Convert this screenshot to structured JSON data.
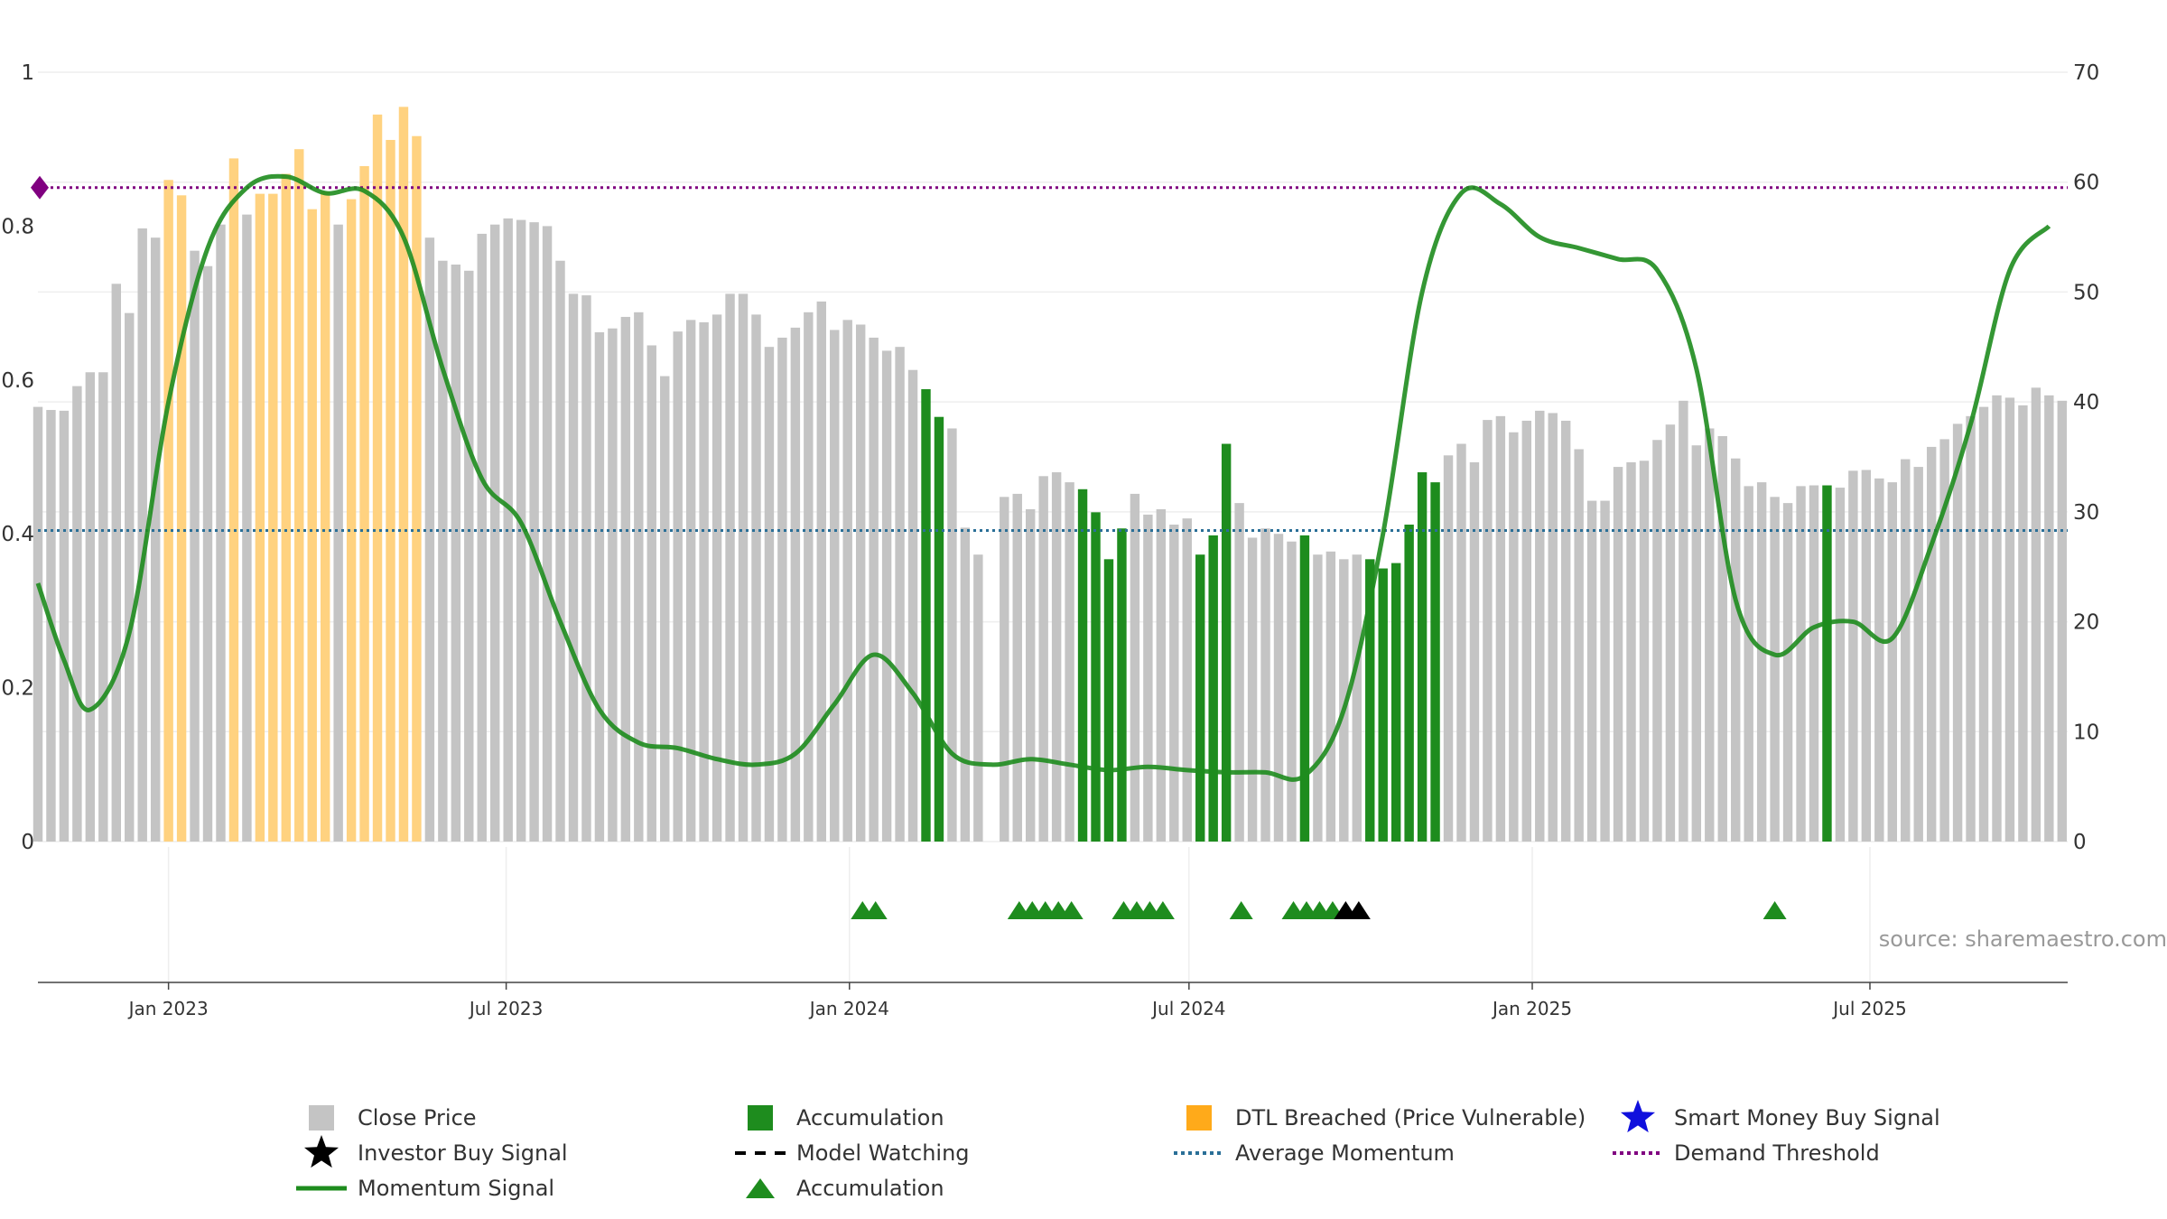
{
  "chart_data": {
    "type": "bar",
    "title": "",
    "left_axis": {
      "min": 0,
      "max": 1,
      "ticks": [
        {
          "value": 0,
          "label": "0"
        },
        {
          "value": 0.2,
          "label": "0.2"
        },
        {
          "value": 0.4,
          "label": "0.4"
        },
        {
          "value": 0.6,
          "label": "0.6"
        },
        {
          "value": 0.8,
          "label": "0.8"
        },
        {
          "value": 1,
          "label": "1"
        }
      ]
    },
    "right_axis": {
      "min": 0,
      "max": 70,
      "ticks": [
        {
          "value": 0,
          "label": "0"
        },
        {
          "value": 10,
          "label": "10"
        },
        {
          "value": 20,
          "label": "20"
        },
        {
          "value": 30,
          "label": "30"
        },
        {
          "value": 40,
          "label": "40"
        },
        {
          "value": 50,
          "label": "50"
        },
        {
          "value": 60,
          "label": "60"
        },
        {
          "value": 70,
          "label": "70"
        }
      ]
    },
    "x_axis": {
      "start": "2022-10-23",
      "end": "2025-10-15",
      "ticks": [
        {
          "date": "2023-01-01",
          "label": "Jan 2023"
        },
        {
          "date": "2023-07-01",
          "label": "Jul 2023"
        },
        {
          "date": "2024-01-01",
          "label": "Jan 2024"
        },
        {
          "date": "2024-07-01",
          "label": "Jul 2024"
        },
        {
          "date": "2025-01-01",
          "label": "Jan 2025"
        },
        {
          "date": "2025-07-01",
          "label": "Jul 2025"
        }
      ]
    },
    "bar_series_name": "Close Price",
    "bar_colors": {
      "gray": "#c4c4c4",
      "green": "#1e8c1e",
      "orange": "#ffd280"
    },
    "first_bar_date": "2022-10-23",
    "bar_interval_days": 7,
    "bars": [
      {
        "v": 0.565,
        "c": "gray"
      },
      {
        "v": 0.561,
        "c": "gray"
      },
      {
        "v": 0.56,
        "c": "gray"
      },
      {
        "v": 0.592,
        "c": "gray"
      },
      {
        "v": 0.61,
        "c": "gray"
      },
      {
        "v": 0.61,
        "c": "gray"
      },
      {
        "v": 0.725,
        "c": "gray"
      },
      {
        "v": 0.687,
        "c": "gray"
      },
      {
        "v": 0.797,
        "c": "gray"
      },
      {
        "v": 0.785,
        "c": "gray"
      },
      {
        "v": 0.86,
        "c": "orange"
      },
      {
        "v": 0.84,
        "c": "orange"
      },
      {
        "v": 0.768,
        "c": "gray"
      },
      {
        "v": 0.748,
        "c": "gray"
      },
      {
        "v": 0.802,
        "c": "gray"
      },
      {
        "v": 0.888,
        "c": "orange"
      },
      {
        "v": 0.815,
        "c": "gray"
      },
      {
        "v": 0.842,
        "c": "orange"
      },
      {
        "v": 0.842,
        "c": "orange"
      },
      {
        "v": 0.868,
        "c": "orange"
      },
      {
        "v": 0.9,
        "c": "orange"
      },
      {
        "v": 0.822,
        "c": "orange"
      },
      {
        "v": 0.845,
        "c": "orange"
      },
      {
        "v": 0.802,
        "c": "gray"
      },
      {
        "v": 0.835,
        "c": "orange"
      },
      {
        "v": 0.878,
        "c": "orange"
      },
      {
        "v": 0.945,
        "c": "orange"
      },
      {
        "v": 0.912,
        "c": "orange"
      },
      {
        "v": 0.955,
        "c": "orange"
      },
      {
        "v": 0.917,
        "c": "orange"
      },
      {
        "v": 0.785,
        "c": "gray"
      },
      {
        "v": 0.755,
        "c": "gray"
      },
      {
        "v": 0.75,
        "c": "gray"
      },
      {
        "v": 0.742,
        "c": "gray"
      },
      {
        "v": 0.79,
        "c": "gray"
      },
      {
        "v": 0.802,
        "c": "gray"
      },
      {
        "v": 0.81,
        "c": "gray"
      },
      {
        "v": 0.808,
        "c": "gray"
      },
      {
        "v": 0.805,
        "c": "gray"
      },
      {
        "v": 0.8,
        "c": "gray"
      },
      {
        "v": 0.755,
        "c": "gray"
      },
      {
        "v": 0.712,
        "c": "gray"
      },
      {
        "v": 0.71,
        "c": "gray"
      },
      {
        "v": 0.662,
        "c": "gray"
      },
      {
        "v": 0.667,
        "c": "gray"
      },
      {
        "v": 0.682,
        "c": "gray"
      },
      {
        "v": 0.688,
        "c": "gray"
      },
      {
        "v": 0.645,
        "c": "gray"
      },
      {
        "v": 0.605,
        "c": "gray"
      },
      {
        "v": 0.663,
        "c": "gray"
      },
      {
        "v": 0.678,
        "c": "gray"
      },
      {
        "v": 0.675,
        "c": "gray"
      },
      {
        "v": 0.685,
        "c": "gray"
      },
      {
        "v": 0.712,
        "c": "gray"
      },
      {
        "v": 0.712,
        "c": "gray"
      },
      {
        "v": 0.685,
        "c": "gray"
      },
      {
        "v": 0.643,
        "c": "gray"
      },
      {
        "v": 0.655,
        "c": "gray"
      },
      {
        "v": 0.668,
        "c": "gray"
      },
      {
        "v": 0.688,
        "c": "gray"
      },
      {
        "v": 0.702,
        "c": "gray"
      },
      {
        "v": 0.665,
        "c": "gray"
      },
      {
        "v": 0.678,
        "c": "gray"
      },
      {
        "v": 0.672,
        "c": "gray"
      },
      {
        "v": 0.655,
        "c": "gray"
      },
      {
        "v": 0.638,
        "c": "gray"
      },
      {
        "v": 0.643,
        "c": "gray"
      },
      {
        "v": 0.613,
        "c": "gray"
      },
      {
        "v": 0.588,
        "c": "green"
      },
      {
        "v": 0.552,
        "c": "green"
      },
      {
        "v": 0.537,
        "c": "gray"
      },
      {
        "v": 0.408,
        "c": "gray"
      },
      {
        "v": 0.373,
        "c": "gray"
      },
      {
        "v": 0.0,
        "c": "gray"
      },
      {
        "v": 0.448,
        "c": "gray"
      },
      {
        "v": 0.452,
        "c": "gray"
      },
      {
        "v": 0.432,
        "c": "gray"
      },
      {
        "v": 0.475,
        "c": "gray"
      },
      {
        "v": 0.48,
        "c": "gray"
      },
      {
        "v": 0.467,
        "c": "gray"
      },
      {
        "v": 0.458,
        "c": "green"
      },
      {
        "v": 0.428,
        "c": "green"
      },
      {
        "v": 0.367,
        "c": "green"
      },
      {
        "v": 0.407,
        "c": "green"
      },
      {
        "v": 0.452,
        "c": "gray"
      },
      {
        "v": 0.425,
        "c": "gray"
      },
      {
        "v": 0.432,
        "c": "gray"
      },
      {
        "v": 0.412,
        "c": "gray"
      },
      {
        "v": 0.42,
        "c": "gray"
      },
      {
        "v": 0.373,
        "c": "green"
      },
      {
        "v": 0.398,
        "c": "green"
      },
      {
        "v": 0.517,
        "c": "green"
      },
      {
        "v": 0.44,
        "c": "gray"
      },
      {
        "v": 0.395,
        "c": "gray"
      },
      {
        "v": 0.407,
        "c": "gray"
      },
      {
        "v": 0.4,
        "c": "gray"
      },
      {
        "v": 0.39,
        "c": "gray"
      },
      {
        "v": 0.398,
        "c": "green"
      },
      {
        "v": 0.373,
        "c": "gray"
      },
      {
        "v": 0.377,
        "c": "gray"
      },
      {
        "v": 0.367,
        "c": "gray"
      },
      {
        "v": 0.373,
        "c": "gray"
      },
      {
        "v": 0.367,
        "c": "green"
      },
      {
        "v": 0.355,
        "c": "green"
      },
      {
        "v": 0.362,
        "c": "green"
      },
      {
        "v": 0.412,
        "c": "green"
      },
      {
        "v": 0.48,
        "c": "green"
      },
      {
        "v": 0.467,
        "c": "green"
      },
      {
        "v": 0.502,
        "c": "gray"
      },
      {
        "v": 0.517,
        "c": "gray"
      },
      {
        "v": 0.493,
        "c": "gray"
      },
      {
        "v": 0.548,
        "c": "gray"
      },
      {
        "v": 0.553,
        "c": "gray"
      },
      {
        "v": 0.532,
        "c": "gray"
      },
      {
        "v": 0.547,
        "c": "gray"
      },
      {
        "v": 0.56,
        "c": "gray"
      },
      {
        "v": 0.557,
        "c": "gray"
      },
      {
        "v": 0.547,
        "c": "gray"
      },
      {
        "v": 0.51,
        "c": "gray"
      },
      {
        "v": 0.443,
        "c": "gray"
      },
      {
        "v": 0.443,
        "c": "gray"
      },
      {
        "v": 0.487,
        "c": "gray"
      },
      {
        "v": 0.493,
        "c": "gray"
      },
      {
        "v": 0.495,
        "c": "gray"
      },
      {
        "v": 0.522,
        "c": "gray"
      },
      {
        "v": 0.542,
        "c": "gray"
      },
      {
        "v": 0.573,
        "c": "gray"
      },
      {
        "v": 0.515,
        "c": "gray"
      },
      {
        "v": 0.537,
        "c": "gray"
      },
      {
        "v": 0.527,
        "c": "gray"
      },
      {
        "v": 0.498,
        "c": "gray"
      },
      {
        "v": 0.462,
        "c": "gray"
      },
      {
        "v": 0.467,
        "c": "gray"
      },
      {
        "v": 0.448,
        "c": "gray"
      },
      {
        "v": 0.44,
        "c": "gray"
      },
      {
        "v": 0.462,
        "c": "gray"
      },
      {
        "v": 0.463,
        "c": "gray"
      },
      {
        "v": 0.463,
        "c": "green"
      },
      {
        "v": 0.46,
        "c": "gray"
      },
      {
        "v": 0.482,
        "c": "gray"
      },
      {
        "v": 0.483,
        "c": "gray"
      },
      {
        "v": 0.472,
        "c": "gray"
      },
      {
        "v": 0.467,
        "c": "gray"
      },
      {
        "v": 0.497,
        "c": "gray"
      },
      {
        "v": 0.487,
        "c": "gray"
      },
      {
        "v": 0.513,
        "c": "gray"
      },
      {
        "v": 0.523,
        "c": "gray"
      },
      {
        "v": 0.543,
        "c": "gray"
      },
      {
        "v": 0.553,
        "c": "gray"
      },
      {
        "v": 0.565,
        "c": "gray"
      },
      {
        "v": 0.58,
        "c": "gray"
      },
      {
        "v": 0.577,
        "c": "gray"
      },
      {
        "v": 0.567,
        "c": "gray"
      },
      {
        "v": 0.59,
        "c": "gray"
      },
      {
        "v": 0.58,
        "c": "gray"
      },
      {
        "v": 0.573,
        "c": "gray"
      }
    ],
    "momentum_signal": {
      "name": "Momentum Signal",
      "axis": "right",
      "color": "#1e8c1e",
      "x_dates": [
        "2022-10-23",
        "2022-11-06",
        "2022-11-20",
        "2022-12-11",
        "2023-01-01",
        "2023-01-22",
        "2023-02-12",
        "2023-03-05",
        "2023-03-26",
        "2023-04-16",
        "2023-05-07",
        "2023-05-28",
        "2023-06-18",
        "2023-07-09",
        "2023-07-30",
        "2023-08-20",
        "2023-09-10",
        "2023-10-01",
        "2023-10-22",
        "2023-11-12",
        "2023-12-03",
        "2023-12-24",
        "2024-01-14",
        "2024-02-04",
        "2024-02-25",
        "2024-03-17",
        "2024-04-07",
        "2024-04-28",
        "2024-05-19",
        "2024-06-09",
        "2024-06-30",
        "2024-07-21",
        "2024-08-11",
        "2024-09-01",
        "2024-09-22",
        "2024-10-13",
        "2024-11-03",
        "2024-11-24",
        "2024-12-15",
        "2025-01-05",
        "2025-01-26",
        "2025-02-16",
        "2025-03-09",
        "2025-03-30",
        "2025-04-20",
        "2025-05-11",
        "2025-06-01",
        "2025-06-22",
        "2025-07-13",
        "2025-08-03",
        "2025-08-24",
        "2025-09-14",
        "2025-10-05"
      ],
      "values": [
        23.5,
        16.5,
        12.0,
        19.0,
        40.0,
        54.0,
        59.5,
        60.5,
        59.0,
        59.2,
        55.0,
        43.0,
        33.0,
        29.0,
        20.0,
        12.0,
        9.0,
        8.5,
        7.5,
        7.0,
        8.0,
        12.5,
        17.0,
        13.5,
        8.0,
        7.0,
        7.5,
        7.0,
        6.5,
        6.8,
        6.5,
        6.3,
        6.3,
        6.0,
        12.0,
        28.0,
        50.0,
        59.0,
        58.0,
        55.0,
        54.0,
        53.0,
        52.0,
        43.0,
        22.0,
        17.0,
        19.5,
        20.0,
        18.5,
        27.0,
        38.0,
        52.0,
        56.0
      ]
    },
    "reference_lines": [
      {
        "name": "Average Momentum",
        "axis": "right",
        "value": 28.3,
        "color": "#2a6f97",
        "style": "dotted"
      },
      {
        "name": "Demand Threshold",
        "axis": "right",
        "value": 59.5,
        "color": "#800080",
        "style": "dotted"
      }
    ],
    "markers": {
      "accumulation": {
        "name": "Accumulation",
        "color": "#1e8c1e",
        "dates": [
          "2024-01-08",
          "2024-01-15",
          "2024-04-01",
          "2024-04-08",
          "2024-04-15",
          "2024-04-22",
          "2024-04-29",
          "2024-05-27",
          "2024-06-03",
          "2024-06-10",
          "2024-06-17",
          "2024-07-29",
          "2024-08-26",
          "2024-09-02",
          "2024-09-09",
          "2024-09-16",
          "2025-05-11"
        ]
      },
      "investor_buy": {
        "name": "Investor Buy Signal",
        "color": "#000000",
        "dates": [
          "2024-09-23",
          "2024-09-30"
        ]
      }
    },
    "annotation": "source: sharemaestro.com",
    "legend": {
      "placement": "bottom",
      "items": [
        {
          "key": "close",
          "label": "Close Price",
          "color": "#c4c4c4",
          "symbol": "square"
        },
        {
          "key": "accum_bar",
          "label": "Accumulation",
          "color": "#1e8c1e",
          "symbol": "square"
        },
        {
          "key": "dtl",
          "label": "DTL Breached (Price Vulnerable)",
          "color": "#ffaa1a",
          "symbol": "square"
        },
        {
          "key": "smart",
          "label": "Smart Money Buy Signal",
          "color": "#1010dd",
          "symbol": "star"
        },
        {
          "key": "investor",
          "label": "Investor Buy Signal",
          "color": "#000000",
          "symbol": "star"
        },
        {
          "key": "watching",
          "label": "Model Watching",
          "color": "#000000",
          "symbol": "dash"
        },
        {
          "key": "avgmom",
          "label": "Average Momentum",
          "color": "#2a6f97",
          "symbol": "dotted"
        },
        {
          "key": "demand",
          "label": "Demand Threshold",
          "color": "#800080",
          "symbol": "dotted"
        },
        {
          "key": "momentum",
          "label": "Momentum Signal",
          "color": "#1e8c1e",
          "symbol": "line"
        },
        {
          "key": "accum_tri",
          "label": "Accumulation",
          "color": "#1e8c1e",
          "symbol": "triangle"
        }
      ]
    }
  }
}
